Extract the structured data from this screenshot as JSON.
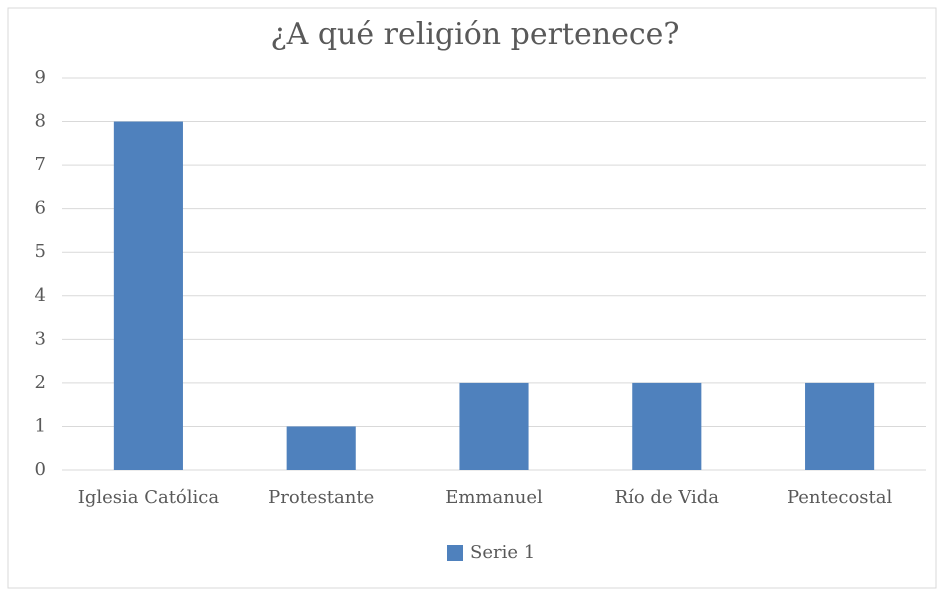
{
  "chart_data": {
    "type": "bar",
    "title": "¿A qué religión pertenece?",
    "categories": [
      "Iglesia Católica",
      "Protestante",
      "Emmanuel",
      "Río de Vida",
      "Pentecostal"
    ],
    "series": [
      {
        "name": "Serie 1",
        "color": "#4f81bd",
        "values": [
          8,
          1,
          2,
          2,
          2
        ]
      }
    ],
    "ylim": [
      0,
      9
    ],
    "yticks": [
      0,
      1,
      2,
      3,
      4,
      5,
      6,
      7,
      8,
      9
    ],
    "grid": true,
    "legend": "bottom"
  }
}
